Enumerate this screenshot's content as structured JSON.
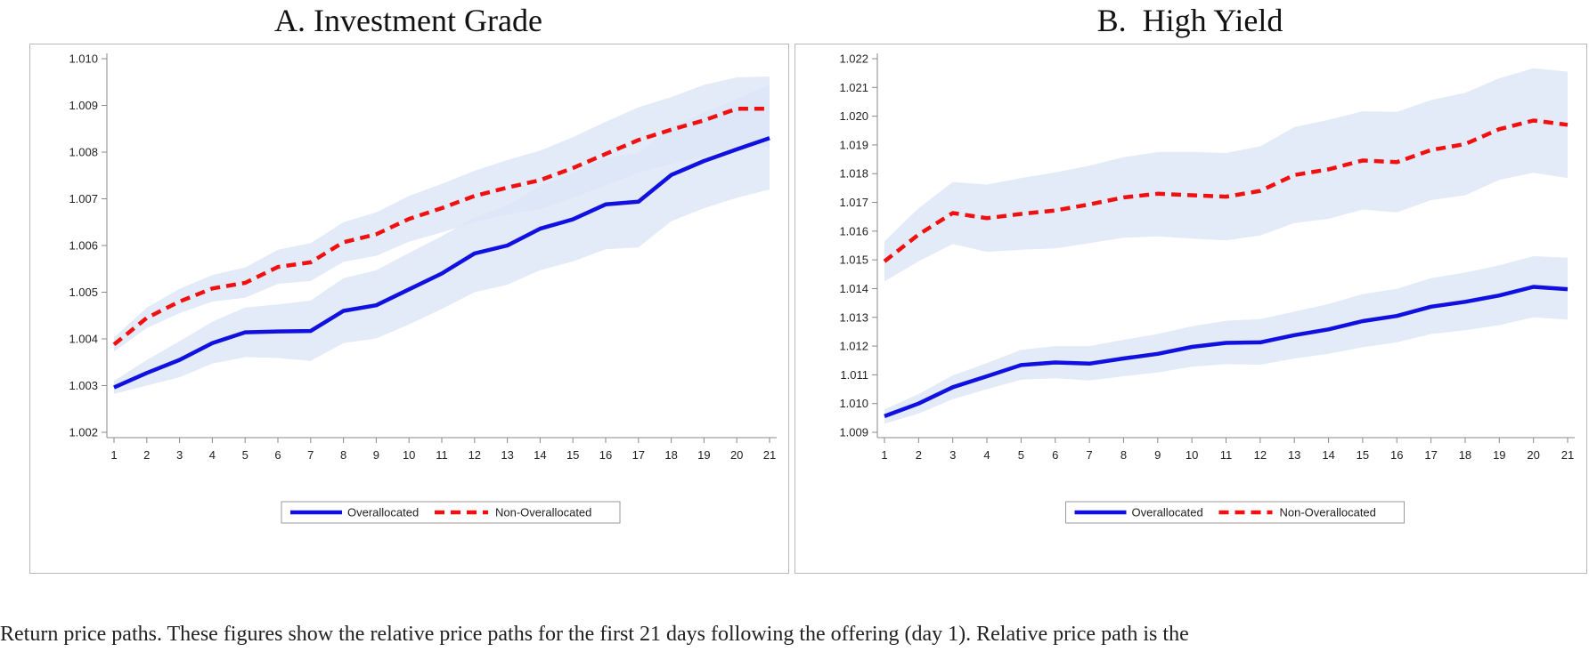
{
  "panels": {
    "a_title": "A. Investment Grade",
    "b_title": "B.  High Yield"
  },
  "caption": "Return price paths. These figures show the relative price paths for the first 21 days following the offering (day 1). Relative price path is the",
  "colors": {
    "overallocated": "#1010e0",
    "non_overallocated": "#f01010",
    "band": "#dbe6f6",
    "axis": "#8a8a8a"
  },
  "chart_data": [
    {
      "type": "line",
      "title": "A. Investment Grade",
      "xlabel": "",
      "ylabel": "",
      "x": [
        1,
        2,
        3,
        4,
        5,
        6,
        7,
        8,
        9,
        10,
        11,
        12,
        13,
        14,
        15,
        16,
        17,
        18,
        19,
        20,
        21
      ],
      "ylim": [
        1.002,
        1.01
      ],
      "yticks": [
        "1.002",
        "1.003",
        "1.004",
        "1.005",
        "1.006",
        "1.007",
        "1.008",
        "1.009",
        "1.010"
      ],
      "grid": false,
      "legend": "bottom",
      "series": [
        {
          "name": "Overallocated",
          "style": "solid",
          "values": [
            1.00296,
            1.00327,
            1.00355,
            1.00391,
            1.00414,
            1.00416,
            1.00417,
            1.0046,
            1.00472,
            1.00506,
            1.0054,
            1.00583,
            1.006,
            1.00636,
            1.00656,
            1.00688,
            1.00694,
            1.00751,
            1.00781,
            1.00806,
            1.0083
          ],
          "lower": [
            1.00282,
            1.003,
            1.00318,
            1.00347,
            1.00361,
            1.00359,
            1.00353,
            1.00391,
            1.00401,
            1.00431,
            1.00464,
            1.005,
            1.00516,
            1.00547,
            1.00566,
            1.00592,
            1.00596,
            1.00652,
            1.0068,
            1.00702,
            1.0072
          ],
          "upper": [
            1.0031,
            1.00355,
            1.00395,
            1.00437,
            1.00467,
            1.00474,
            1.00482,
            1.0053,
            1.00547,
            1.00584,
            1.0062,
            1.0066,
            1.00686,
            1.00727,
            1.00756,
            1.00788,
            1.00798,
            1.00853,
            1.00885,
            1.00914,
            1.00945
          ]
        },
        {
          "name": "Non-Overallocated",
          "style": "dashed",
          "values": [
            1.00388,
            1.00445,
            1.0048,
            1.00508,
            1.0052,
            1.00554,
            1.00564,
            1.00607,
            1.00624,
            1.00657,
            1.0068,
            1.00706,
            1.00724,
            1.0074,
            1.00766,
            1.00796,
            1.00826,
            1.00848,
            1.00868,
            1.00893,
            1.00893
          ],
          "lower": [
            1.00373,
            1.00423,
            1.00455,
            1.0048,
            1.00488,
            1.00518,
            1.00524,
            1.00565,
            1.00578,
            1.00608,
            1.00628,
            1.0065,
            1.00666,
            1.00678,
            1.00702,
            1.00729,
            1.00756,
            1.00775,
            1.00792,
            1.00813,
            1.0081
          ],
          "upper": [
            1.00403,
            1.00467,
            1.00507,
            1.00537,
            1.00553,
            1.00591,
            1.00605,
            1.0065,
            1.00671,
            1.00706,
            1.00732,
            1.0076,
            1.00783,
            1.00803,
            1.00832,
            1.00865,
            1.00896,
            1.00918,
            1.00944,
            1.0096,
            1.00962
          ]
        }
      ]
    },
    {
      "type": "line",
      "title": "B.  High Yield",
      "xlabel": "",
      "ylabel": "",
      "x": [
        1,
        2,
        3,
        4,
        5,
        6,
        7,
        8,
        9,
        10,
        11,
        12,
        13,
        14,
        15,
        16,
        17,
        18,
        19,
        20,
        21
      ],
      "ylim": [
        1.009,
        1.022
      ],
      "yticks": [
        "1.009",
        "1.010",
        "1.011",
        "1.012",
        "1.013",
        "1.014",
        "1.015",
        "1.016",
        "1.017",
        "1.018",
        "1.019",
        "1.020",
        "1.021",
        "1.022"
      ],
      "grid": false,
      "legend": "bottom",
      "series": [
        {
          "name": "Overallocated",
          "style": "solid",
          "values": [
            1.00956,
            1.01,
            1.01057,
            1.01095,
            1.01134,
            1.01143,
            1.01139,
            1.01157,
            1.01173,
            1.01197,
            1.01211,
            1.01213,
            1.01238,
            1.01258,
            1.01287,
            1.01305,
            1.01337,
            1.01354,
            1.01376,
            1.01406,
            1.01398
          ],
          "lower": [
            1.0093,
            1.00965,
            1.01015,
            1.0105,
            1.01083,
            1.01088,
            1.0108,
            1.01095,
            1.01108,
            1.01128,
            1.01137,
            1.01135,
            1.01157,
            1.01173,
            1.01196,
            1.01213,
            1.01242,
            1.01255,
            1.01273,
            1.013,
            1.01292
          ],
          "upper": [
            1.0098,
            1.01033,
            1.01098,
            1.01141,
            1.01187,
            1.012,
            1.012,
            1.01222,
            1.01242,
            1.01269,
            1.01288,
            1.01294,
            1.0132,
            1.01346,
            1.01381,
            1.01399,
            1.01436,
            1.01456,
            1.01481,
            1.01513,
            1.01508
          ]
        },
        {
          "name": "Non-Overallocated",
          "style": "dashed",
          "values": [
            1.01495,
            1.01588,
            1.01663,
            1.01645,
            1.0166,
            1.01672,
            1.01693,
            1.01717,
            1.0173,
            1.01725,
            1.0172,
            1.0174,
            1.01795,
            1.01815,
            1.01846,
            1.0184,
            1.01882,
            1.01903,
            1.01955,
            1.01985,
            1.0197
          ],
          "lower": [
            1.01425,
            1.01495,
            1.01555,
            1.01528,
            1.01535,
            1.0154,
            1.01558,
            1.01577,
            1.01582,
            1.01574,
            1.01568,
            1.01585,
            1.01628,
            1.01643,
            1.01675,
            1.01665,
            1.01708,
            1.01725,
            1.01778,
            1.01803,
            1.01785
          ],
          "upper": [
            1.01565,
            1.0168,
            1.01771,
            1.01762,
            1.01785,
            1.01804,
            1.01828,
            1.01857,
            1.01875,
            1.01876,
            1.01872,
            1.01895,
            1.01962,
            1.01987,
            1.02017,
            1.02015,
            1.02056,
            1.02081,
            1.02132,
            1.02167,
            1.02155
          ]
        }
      ]
    }
  ]
}
